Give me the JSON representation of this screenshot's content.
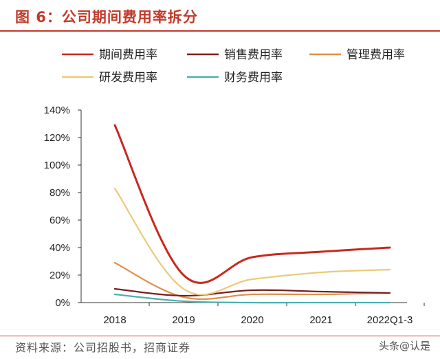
{
  "header": {
    "title": "图 6：公司期间费用率拆分"
  },
  "source": "资料来源：公司招股书，招商证券",
  "watermark": "头条@认是",
  "chart_data": {
    "type": "line",
    "title": "公司期间费用率拆分",
    "categories": [
      "2018",
      "2019",
      "2020",
      "2021",
      "2022Q1-3"
    ],
    "ylim": [
      0,
      140
    ],
    "yticks": [
      0,
      20,
      40,
      60,
      80,
      100,
      120,
      140
    ],
    "ytick_labels": [
      "0%",
      "20%",
      "40%",
      "60%",
      "80%",
      "100%",
      "120%",
      "140%"
    ],
    "legend_position": "top",
    "series": [
      {
        "name": "期间费用率",
        "color": "#c8281e",
        "values": [
          129,
          20,
          33,
          37,
          40
        ]
      },
      {
        "name": "销售费用率",
        "color": "#7a1f1f",
        "values": [
          10,
          5,
          9,
          8,
          7
        ]
      },
      {
        "name": "管理费用率",
        "color": "#e0904a",
        "values": [
          29,
          4,
          6,
          6,
          7
        ]
      },
      {
        "name": "研发费用率",
        "color": "#ecc97a",
        "values": [
          83,
          10,
          17,
          22,
          24
        ]
      },
      {
        "name": "财务费用率",
        "color": "#4bb0b0",
        "values": [
          6,
          1,
          0,
          0,
          0
        ]
      }
    ]
  }
}
